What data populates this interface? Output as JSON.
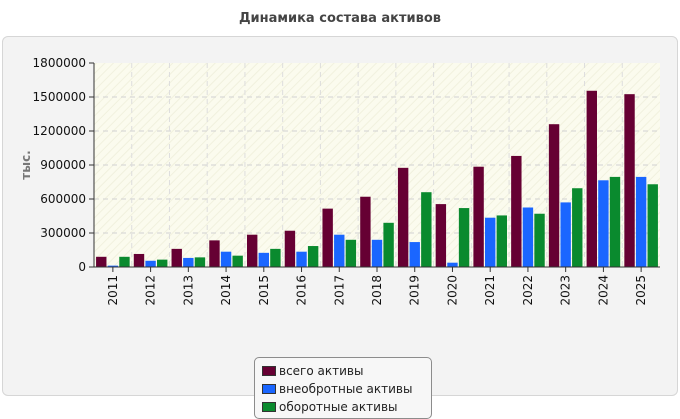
{
  "chart_data": {
    "type": "bar",
    "title": "Динамика состава активов",
    "ylabel": "тыс.",
    "xlabel": "",
    "ylim": [
      0,
      1800000
    ],
    "yticks": [
      "0",
      "300000",
      "600000",
      "900000",
      "1200000",
      "1500000",
      "1800000"
    ],
    "grid": true,
    "legend_position": "bottom",
    "categories": [
      "2011",
      "2012",
      "2013",
      "2014",
      "2015",
      "2016",
      "2017",
      "2018",
      "2019",
      "2020",
      "2021",
      "2022",
      "2023",
      "2024",
      "2025"
    ],
    "series": [
      {
        "name": "всего активы",
        "color": "#660033",
        "values": [
          90000,
          115000,
          160000,
          235000,
          285000,
          320000,
          515000,
          620000,
          875000,
          555000,
          885000,
          980000,
          1260000,
          1555000,
          1525000
        ]
      },
      {
        "name": "внеобротные активы",
        "color": "#1a66ff",
        "values": [
          12000,
          55000,
          80000,
          135000,
          125000,
          135000,
          285000,
          240000,
          220000,
          38000,
          435000,
          525000,
          570000,
          765000,
          795000
        ]
      },
      {
        "name": "оборотные активы",
        "color": "#0a8a2e",
        "values": [
          90000,
          65000,
          85000,
          100000,
          160000,
          185000,
          240000,
          390000,
          660000,
          520000,
          455000,
          470000,
          695000,
          795000,
          730000
        ]
      }
    ]
  }
}
